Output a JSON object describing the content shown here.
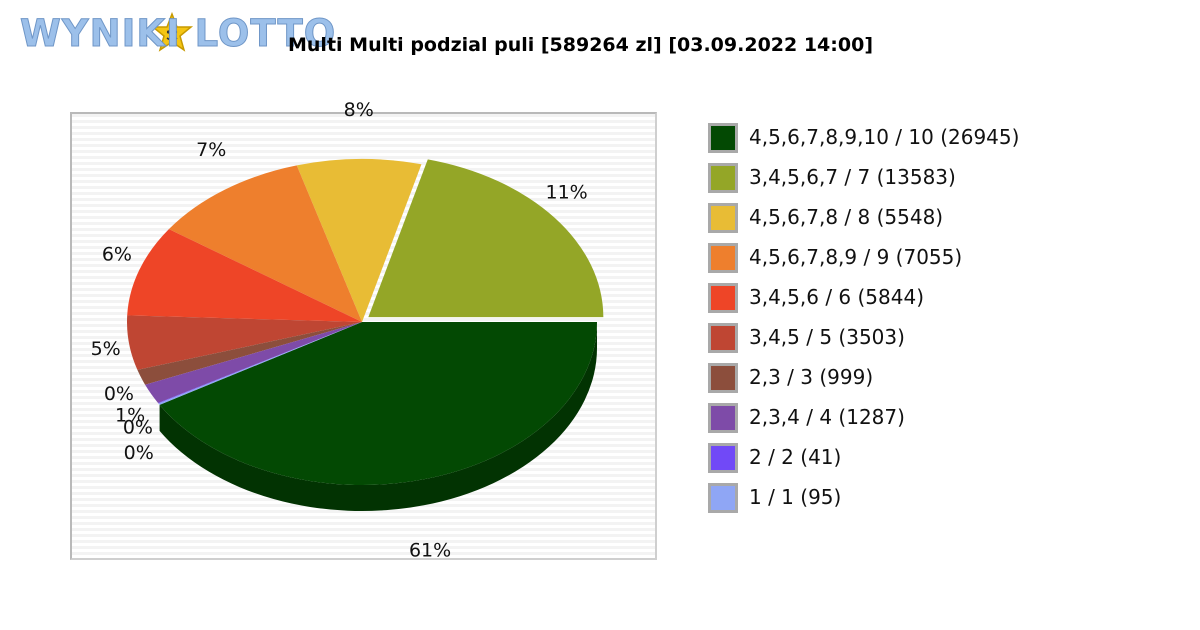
{
  "logo": {
    "text": "WYNIKI LOTTO",
    "icon": "star-face-icon"
  },
  "chart_data": {
    "type": "pie",
    "title": "Multi Multi podzial puli [589264 zl] [03.09.2022 14:00]",
    "legend_position": "right",
    "slices": [
      {
        "label": "4,5,6,7,8,9,10 / 10 (26945)",
        "value": 26945,
        "pct_label": "61%",
        "color": "#034903"
      },
      {
        "label": "3,4,5,6,7 / 7 (13583)",
        "value": 13583,
        "pct_label": "11%",
        "color": "#94a627"
      },
      {
        "label": "4,5,6,7,8 / 8 (5548)",
        "value": 5548,
        "pct_label": "8%",
        "color": "#e8bc35"
      },
      {
        "label": "4,5,6,7,8,9 / 9 (7055)",
        "value": 7055,
        "pct_label": "7%",
        "color": "#ee7f2d"
      },
      {
        "label": "3,4,5,6 / 6 (5844)",
        "value": 5844,
        "pct_label": "6%",
        "color": "#ee4527"
      },
      {
        "label": "3,4,5 / 5 (3503)",
        "value": 3503,
        "pct_label": "5%",
        "color": "#bf4633"
      },
      {
        "label": "2,3 / 3 (999)",
        "value": 999,
        "pct_label": "0%",
        "color": "#8c4e3c"
      },
      {
        "label": "2,3,4 / 4 (1287)",
        "value": 1287,
        "pct_label": "1%",
        "color": "#7e4ba8"
      },
      {
        "label": "2 / 2 (41)",
        "value": 41,
        "pct_label": "0%",
        "color": "#7149f7"
      },
      {
        "label": "1 / 1 (95)",
        "value": 95,
        "pct_label": "0%",
        "color": "#8fa6f5"
      }
    ]
  }
}
